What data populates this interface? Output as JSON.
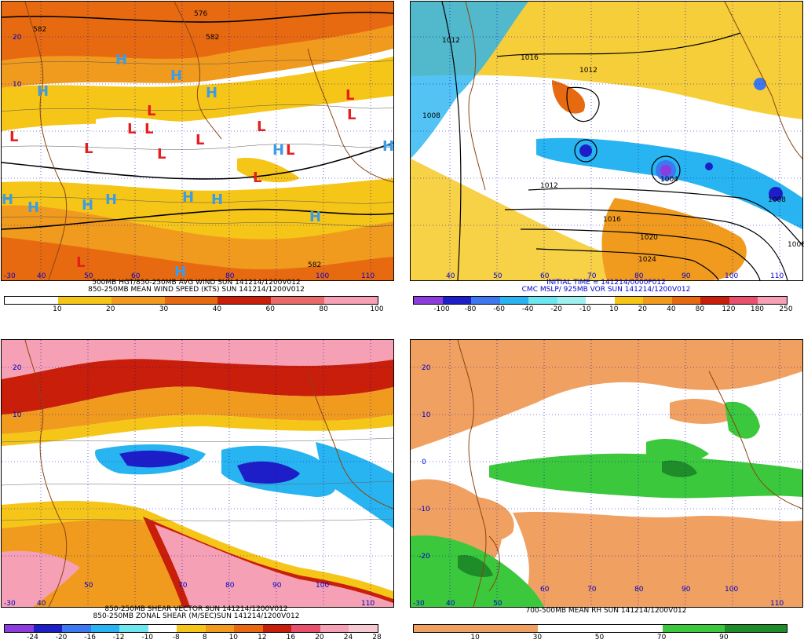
{
  "panels": {
    "p1": {
      "title1": "500MB HGT/850-250MB AVG WIND SUN 141214/1200V012",
      "title2": "850-250MB MEAN WIND SPEED (KTS) SUN 141214/1200V012",
      "colorbar": {
        "labels": [
          "10",
          "20",
          "30",
          "40",
          "60",
          "80",
          "100"
        ],
        "colors": [
          "#ffffff",
          "#f5c518",
          "#f09a1e",
          "#e86a10",
          "#c81e0a",
          "#e86a6a",
          "#f5a0b4"
        ]
      },
      "contours": [
        "582",
        "582",
        "576",
        "582"
      ],
      "pressure_letters": {
        "H": "H",
        "L": "L"
      }
    },
    "p2": {
      "title1": "INITIAL TIME = 141214/0000F012",
      "title2": "CMC MSLP/ 925MB VOR SUN 141214/1200V012",
      "colorbar": {
        "labels": [
          "-100",
          "-80",
          "-60",
          "-40",
          "-20",
          "-10",
          "10",
          "20",
          "40",
          "80",
          "120",
          "180",
          "250"
        ],
        "colors": [
          "#8c3cdc",
          "#1e1ec8",
          "#3c78f0",
          "#28b4f0",
          "#6ee6f0",
          "#a0f0f0",
          "#ffffff",
          "#f5c518",
          "#f09a1e",
          "#e86a10",
          "#c81e0a",
          "#e8506e",
          "#f5a0b4"
        ]
      },
      "isobars": [
        "1012",
        "1016",
        "1012",
        "1008",
        "1012",
        "1016",
        "1020",
        "1024",
        "1008",
        "1004",
        "1008"
      ]
    },
    "p3": {
      "title1": "850-250MB SHEAR VECTOR SUN 141214/1200V012",
      "title2": "850-250MB ZONAL SHEAR (M/SEC)SUN 141214/1200V012",
      "colorbar": {
        "labels": [
          "-24",
          "-20",
          "-16",
          "-12",
          "-10",
          "-8",
          "8",
          "10",
          "12",
          "16",
          "20",
          "24",
          "28"
        ],
        "colors": [
          "#8c3cdc",
          "#1e1ec8",
          "#3c78f0",
          "#28b4f0",
          "#6ee6f0",
          "#ffffff",
          "#f5c518",
          "#f09a1e",
          "#e86a10",
          "#c81e0a",
          "#e8506e",
          "#f5a0b4",
          "#f5c8d2"
        ]
      }
    },
    "p4": {
      "title1": "700-500MB MEAN RH SUN 141214/1200V012",
      "colorbar": {
        "labels": [
          "10",
          "30",
          "50",
          "70",
          "90"
        ],
        "colors": [
          "#f0a060",
          "#f0a060",
          "#ffffff",
          "#ffffff",
          "#3cc83c",
          "#1e8c28"
        ]
      }
    }
  },
  "lon_labels": [
    "40",
    "50",
    "60",
    "70",
    "80",
    "90",
    "100",
    "110"
  ],
  "lat_labels": [
    "20",
    "10",
    "0",
    "-10",
    "-20",
    "-30"
  ]
}
